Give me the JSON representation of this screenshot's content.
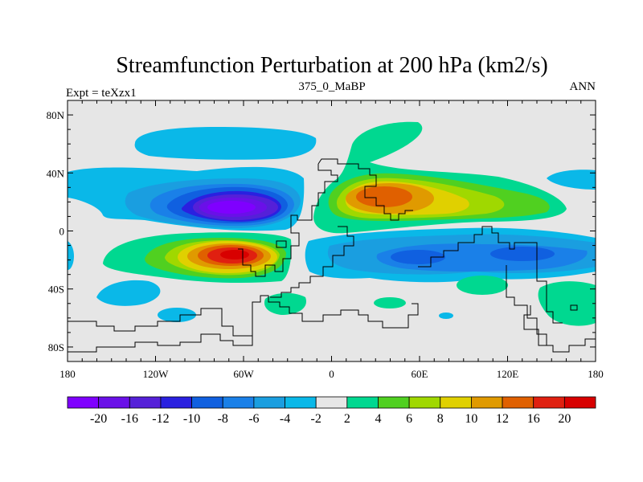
{
  "chart_data": {
    "type": "contour-map",
    "title": "Streamfunction Perturbation at 200 hPa (km2/s)",
    "left_label": "Expt = teXzx1",
    "center_label": "375_0_MaBP",
    "right_label": "ANN",
    "x_ticks": [
      {
        "value": -180,
        "label": "180"
      },
      {
        "value": -120,
        "label": "120W"
      },
      {
        "value": -60,
        "label": "60W"
      },
      {
        "value": 0,
        "label": "0"
      },
      {
        "value": 60,
        "label": "60E"
      },
      {
        "value": 120,
        "label": "120E"
      },
      {
        "value": 180,
        "label": "180"
      }
    ],
    "y_ticks": [
      {
        "value": 80,
        "label": "80N"
      },
      {
        "value": 40,
        "label": "40N"
      },
      {
        "value": 0,
        "label": "0"
      },
      {
        "value": -40,
        "label": "40S"
      },
      {
        "value": -80,
        "label": "80S"
      }
    ],
    "xlim": [
      -180,
      180
    ],
    "ylim": [
      -90,
      90
    ],
    "levels": [
      -20,
      -16,
      -12,
      -10,
      -8,
      -6,
      -4,
      -2,
      2,
      4,
      6,
      8,
      10,
      12,
      16,
      20
    ],
    "colors": [
      "#7f00ff",
      "#6a10e8",
      "#5520d8",
      "#2a20e0",
      "#1060e0",
      "#1a80e8",
      "#1a9ee0",
      "#0ab8e8",
      "#e6e6e6",
      "#00d890",
      "#50d020",
      "#a0d800",
      "#e0d000",
      "#e09a00",
      "#e06000",
      "#e02010",
      "#d80000"
    ],
    "features": [
      {
        "name": "Southern-mid-latitude positive vortex",
        "lon": -55,
        "lat": -17,
        "rx": 34,
        "ry": 14,
        "peak": 20
      },
      {
        "name": "Northern negative vortex over Atlantic",
        "lon": -60,
        "lat": 16,
        "rx": 42,
        "ry": 15,
        "peak": -20
      },
      {
        "name": "Northern positive anticyclone over Africa/Asia",
        "lon": 40,
        "lat": 22,
        "rx": 55,
        "ry": 17,
        "peak": 12
      },
      {
        "name": "Southern negative band over Indian Ocean",
        "lon": 75,
        "lat": -18,
        "rx": 70,
        "ry": 10,
        "peak": -8
      }
    ]
  }
}
